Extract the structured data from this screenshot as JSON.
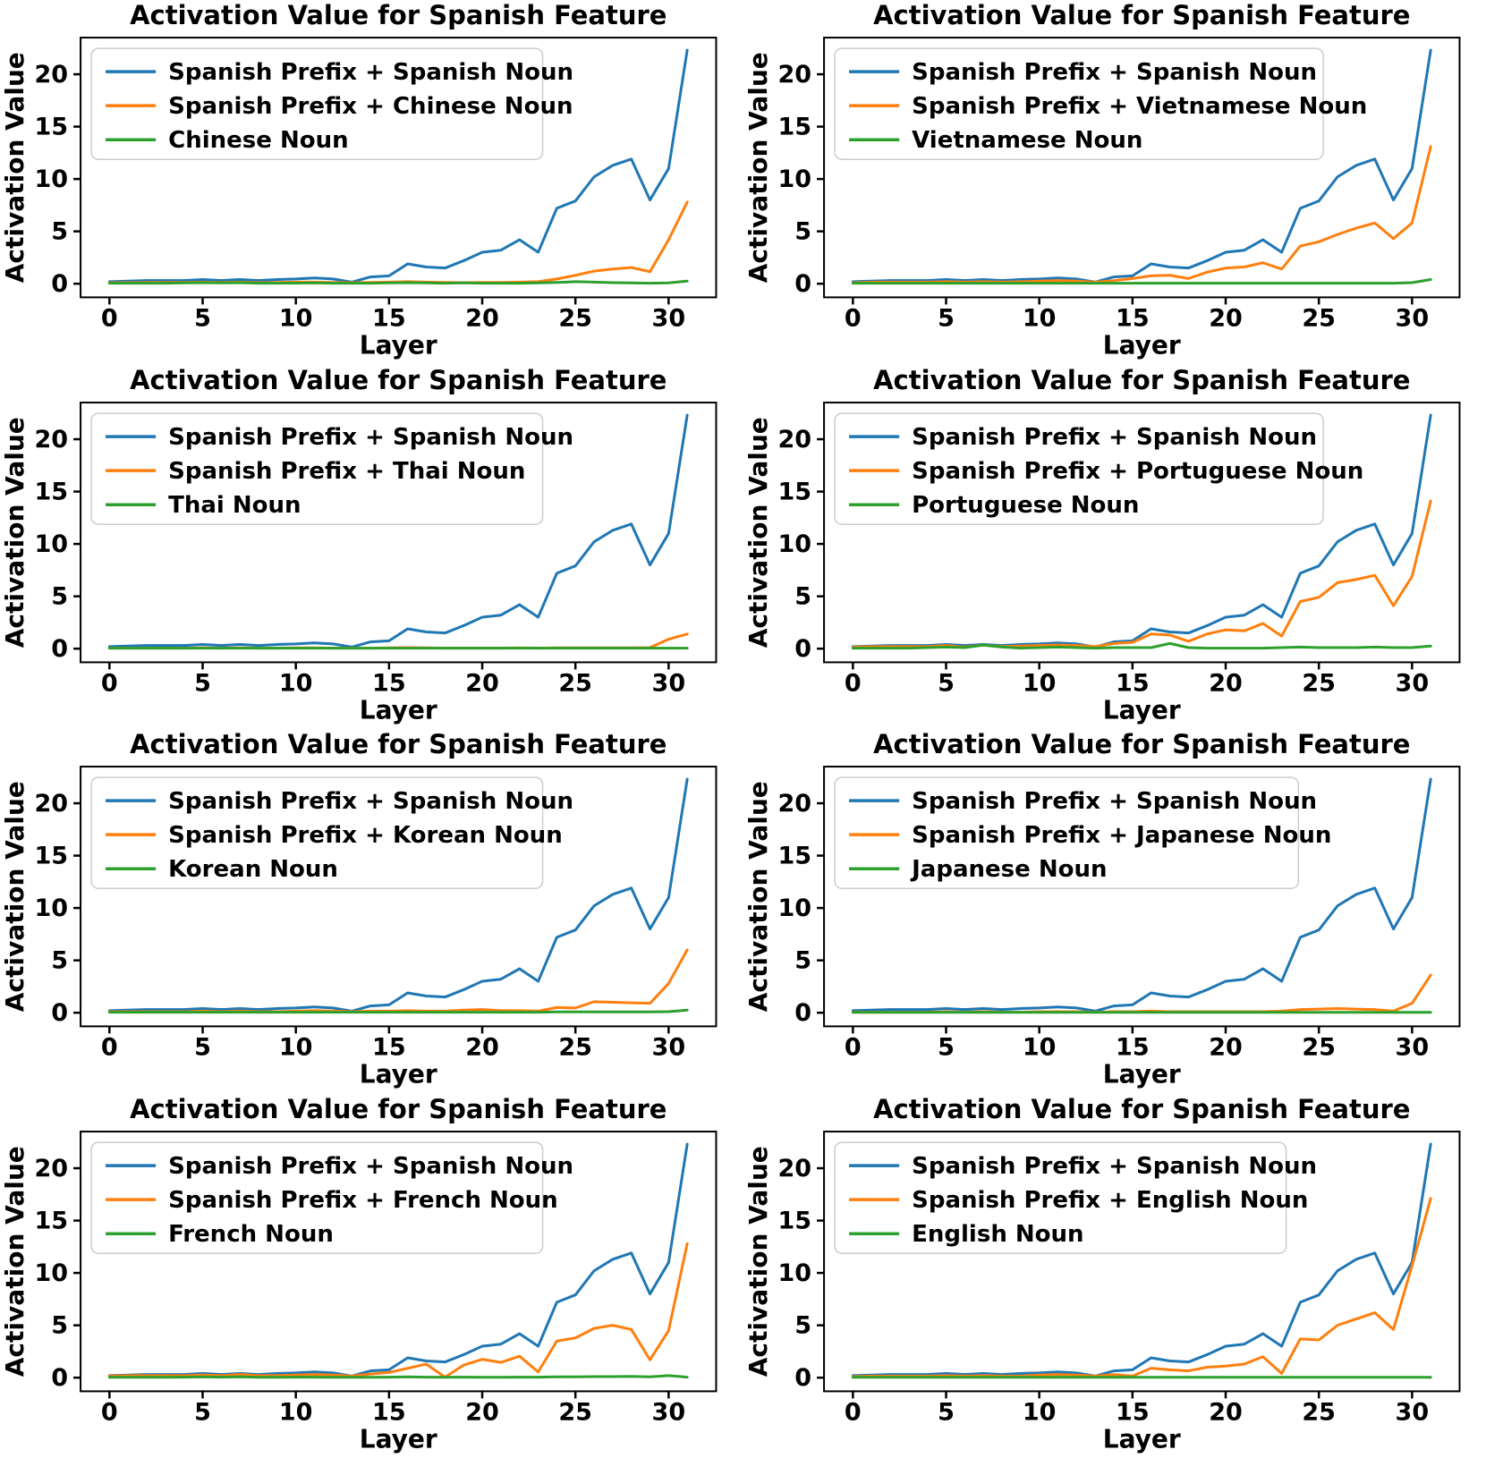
{
  "figure": {
    "background": "#ffffff",
    "text_color": "#000000",
    "font_weight": "bold",
    "layers": [
      0,
      1,
      2,
      3,
      4,
      5,
      6,
      7,
      8,
      9,
      10,
      11,
      12,
      13,
      14,
      15,
      16,
      17,
      18,
      19,
      20,
      21,
      22,
      23,
      24,
      25,
      26,
      27,
      28,
      29,
      30,
      31
    ],
    "x_ticks": [
      0,
      5,
      10,
      15,
      20,
      25,
      30
    ],
    "y_ticks": [
      0,
      5,
      10,
      15,
      20
    ],
    "xlim": [
      -1.55,
      32.55
    ],
    "ylim": [
      -1.3,
      23.5
    ],
    "grid": false,
    "legend_position": "upper left",
    "colors": {
      "spanish_line": "#1f77b4",
      "mixed_line": "#ff7f0e",
      "noun_line": "#2ca02c",
      "legend_border": "#cccccc"
    }
  },
  "chart_data": [
    {
      "type": "line",
      "title": "Activation Value for Spanish Feature",
      "xlabel": "Layer",
      "ylabel": "Activation Value",
      "comparison_language": "Chinese",
      "series": [
        {
          "name": "Spanish Prefix + Spanish Noun",
          "color": "#1f77b4",
          "values": [
            0.2,
            0.25,
            0.3,
            0.3,
            0.3,
            0.4,
            0.3,
            0.4,
            0.3,
            0.4,
            0.45,
            0.55,
            0.45,
            0.15,
            0.65,
            0.75,
            1.9,
            1.6,
            1.5,
            2.2,
            3.0,
            3.2,
            4.2,
            3.0,
            7.2,
            7.9,
            10.2,
            11.3,
            11.9,
            8.0,
            11.0,
            22.3
          ]
        },
        {
          "name": "Spanish Prefix + Chinese Noun",
          "color": "#ff7f0e",
          "values": [
            0.1,
            0.1,
            0.12,
            0.12,
            0.12,
            0.15,
            0.12,
            0.15,
            0.1,
            0.12,
            0.15,
            0.15,
            0.12,
            0.1,
            0.12,
            0.15,
            0.2,
            0.15,
            0.12,
            0.1,
            0.12,
            0.12,
            0.15,
            0.2,
            0.45,
            0.8,
            1.2,
            1.4,
            1.55,
            1.15,
            4.2,
            7.8
          ]
        },
        {
          "name": "Chinese Noun",
          "color": "#2ca02c",
          "values": [
            0.05,
            0.05,
            0.05,
            0.05,
            0.08,
            0.1,
            0.08,
            0.1,
            0.05,
            0.05,
            0.06,
            0.08,
            0.05,
            0.05,
            0.05,
            0.08,
            0.1,
            0.08,
            0.05,
            0.08,
            0.05,
            0.05,
            0.05,
            0.08,
            0.12,
            0.2,
            0.15,
            0.1,
            0.08,
            0.05,
            0.08,
            0.25
          ]
        }
      ]
    },
    {
      "type": "line",
      "title": "Activation Value for Spanish Feature",
      "xlabel": "Layer",
      "ylabel": "Activation Value",
      "comparison_language": "Vietnamese",
      "series": [
        {
          "name": "Spanish Prefix + Spanish Noun",
          "color": "#1f77b4",
          "values": [
            0.2,
            0.25,
            0.3,
            0.3,
            0.3,
            0.4,
            0.3,
            0.4,
            0.3,
            0.4,
            0.45,
            0.55,
            0.45,
            0.15,
            0.65,
            0.75,
            1.9,
            1.6,
            1.5,
            2.2,
            3.0,
            3.2,
            4.2,
            3.0,
            7.2,
            7.9,
            10.2,
            11.3,
            11.9,
            8.0,
            11.0,
            22.3
          ]
        },
        {
          "name": "Spanish Prefix + Vietnamese Noun",
          "color": "#ff7f0e",
          "values": [
            0.1,
            0.15,
            0.15,
            0.15,
            0.15,
            0.2,
            0.15,
            0.2,
            0.15,
            0.2,
            0.25,
            0.3,
            0.25,
            0.15,
            0.3,
            0.5,
            0.75,
            0.8,
            0.5,
            1.1,
            1.5,
            1.6,
            2.0,
            1.4,
            3.6,
            4.0,
            4.7,
            5.3,
            5.8,
            4.3,
            5.8,
            13.1
          ]
        },
        {
          "name": "Vietnamese Noun",
          "color": "#2ca02c",
          "values": [
            0.05,
            0.05,
            0.05,
            0.05,
            0.05,
            0.05,
            0.05,
            0.05,
            0.05,
            0.05,
            0.05,
            0.05,
            0.05,
            0.05,
            0.05,
            0.05,
            0.05,
            0.05,
            0.05,
            0.05,
            0.05,
            0.05,
            0.05,
            0.05,
            0.05,
            0.05,
            0.05,
            0.05,
            0.05,
            0.05,
            0.1,
            0.4
          ]
        }
      ]
    },
    {
      "type": "line",
      "title": "Activation Value for Spanish Feature",
      "xlabel": "Layer",
      "ylabel": "Activation Value",
      "comparison_language": "Thai",
      "series": [
        {
          "name": "Spanish Prefix + Spanish Noun",
          "color": "#1f77b4",
          "values": [
            0.2,
            0.25,
            0.3,
            0.3,
            0.3,
            0.4,
            0.3,
            0.4,
            0.3,
            0.4,
            0.45,
            0.55,
            0.45,
            0.15,
            0.65,
            0.75,
            1.9,
            1.6,
            1.5,
            2.2,
            3.0,
            3.2,
            4.2,
            3.0,
            7.2,
            7.9,
            10.2,
            11.3,
            11.9,
            8.0,
            11.0,
            22.3
          ]
        },
        {
          "name": "Spanish Prefix + Thai Noun",
          "color": "#ff7f0e",
          "values": [
            0.05,
            0.05,
            0.05,
            0.05,
            0.05,
            0.08,
            0.05,
            0.08,
            0.05,
            0.05,
            0.08,
            0.08,
            0.05,
            0.05,
            0.05,
            0.08,
            0.1,
            0.08,
            0.05,
            0.05,
            0.05,
            0.05,
            0.08,
            0.05,
            0.08,
            0.08,
            0.08,
            0.08,
            0.08,
            0.1,
            0.9,
            1.4
          ]
        },
        {
          "name": "Thai Noun",
          "color": "#2ca02c",
          "values": [
            0.05,
            0.05,
            0.05,
            0.05,
            0.05,
            0.05,
            0.05,
            0.05,
            0.05,
            0.05,
            0.05,
            0.05,
            0.05,
            0.05,
            0.05,
            0.05,
            0.05,
            0.05,
            0.05,
            0.05,
            0.05,
            0.05,
            0.05,
            0.05,
            0.05,
            0.05,
            0.05,
            0.05,
            0.05,
            0.05,
            0.05,
            0.05
          ]
        }
      ]
    },
    {
      "type": "line",
      "title": "Activation Value for Spanish Feature",
      "xlabel": "Layer",
      "ylabel": "Activation Value",
      "comparison_language": "Portuguese",
      "series": [
        {
          "name": "Spanish Prefix + Spanish Noun",
          "color": "#1f77b4",
          "values": [
            0.2,
            0.25,
            0.3,
            0.3,
            0.3,
            0.4,
            0.3,
            0.4,
            0.3,
            0.4,
            0.45,
            0.55,
            0.45,
            0.15,
            0.65,
            0.75,
            1.9,
            1.6,
            1.5,
            2.2,
            3.0,
            3.2,
            4.2,
            3.0,
            7.2,
            7.9,
            10.2,
            11.3,
            11.9,
            8.0,
            11.0,
            22.3
          ]
        },
        {
          "name": "Spanish Prefix + Portuguese Noun",
          "color": "#ff7f0e",
          "values": [
            0.15,
            0.2,
            0.2,
            0.2,
            0.2,
            0.3,
            0.15,
            0.35,
            0.2,
            0.25,
            0.3,
            0.35,
            0.3,
            0.2,
            0.5,
            0.6,
            1.4,
            1.3,
            0.7,
            1.4,
            1.8,
            1.7,
            2.4,
            1.2,
            4.5,
            4.9,
            6.3,
            6.6,
            7.0,
            4.1,
            6.9,
            14.1
          ]
        },
        {
          "name": "Portuguese Noun",
          "color": "#2ca02c",
          "values": [
            0.05,
            0.05,
            0.05,
            0.05,
            0.1,
            0.15,
            0.1,
            0.35,
            0.15,
            0.05,
            0.1,
            0.15,
            0.1,
            0.05,
            0.1,
            0.1,
            0.1,
            0.5,
            0.1,
            0.05,
            0.05,
            0.05,
            0.05,
            0.1,
            0.15,
            0.1,
            0.1,
            0.1,
            0.15,
            0.1,
            0.1,
            0.25
          ]
        }
      ]
    },
    {
      "type": "line",
      "title": "Activation Value for Spanish Feature",
      "xlabel": "Layer",
      "ylabel": "Activation Value",
      "comparison_language": "Korean",
      "series": [
        {
          "name": "Spanish Prefix + Spanish Noun",
          "color": "#1f77b4",
          "values": [
            0.2,
            0.25,
            0.3,
            0.3,
            0.3,
            0.4,
            0.3,
            0.4,
            0.3,
            0.4,
            0.45,
            0.55,
            0.45,
            0.15,
            0.65,
            0.75,
            1.9,
            1.6,
            1.5,
            2.2,
            3.0,
            3.2,
            4.2,
            3.0,
            7.2,
            7.9,
            10.2,
            11.3,
            11.9,
            8.0,
            11.0,
            22.3
          ]
        },
        {
          "name": "Spanish Prefix + Korean Noun",
          "color": "#ff7f0e",
          "values": [
            0.1,
            0.1,
            0.1,
            0.1,
            0.1,
            0.15,
            0.1,
            0.15,
            0.1,
            0.1,
            0.15,
            0.2,
            0.15,
            0.1,
            0.15,
            0.15,
            0.2,
            0.15,
            0.15,
            0.25,
            0.3,
            0.2,
            0.2,
            0.15,
            0.5,
            0.45,
            1.05,
            1.0,
            0.95,
            0.9,
            2.8,
            6.0
          ]
        },
        {
          "name": "Korean Noun",
          "color": "#2ca02c",
          "values": [
            0.05,
            0.05,
            0.05,
            0.05,
            0.05,
            0.05,
            0.05,
            0.05,
            0.05,
            0.05,
            0.05,
            0.05,
            0.05,
            0.05,
            0.05,
            0.05,
            0.05,
            0.05,
            0.05,
            0.05,
            0.05,
            0.05,
            0.05,
            0.05,
            0.08,
            0.08,
            0.08,
            0.08,
            0.08,
            0.08,
            0.1,
            0.25
          ]
        }
      ]
    },
    {
      "type": "line",
      "title": "Activation Value for Spanish Feature",
      "xlabel": "Layer",
      "ylabel": "Activation Value",
      "comparison_language": "Japanese",
      "series": [
        {
          "name": "Spanish Prefix + Spanish Noun",
          "color": "#1f77b4",
          "values": [
            0.2,
            0.25,
            0.3,
            0.3,
            0.3,
            0.4,
            0.3,
            0.4,
            0.3,
            0.4,
            0.45,
            0.55,
            0.45,
            0.15,
            0.65,
            0.75,
            1.9,
            1.6,
            1.5,
            2.2,
            3.0,
            3.2,
            4.2,
            3.0,
            7.2,
            7.9,
            10.2,
            11.3,
            11.9,
            8.0,
            11.0,
            22.3
          ]
        },
        {
          "name": "Spanish Prefix + Japanese Noun",
          "color": "#ff7f0e",
          "values": [
            0.05,
            0.05,
            0.05,
            0.05,
            0.05,
            0.1,
            0.05,
            0.1,
            0.05,
            0.05,
            0.1,
            0.1,
            0.1,
            0.05,
            0.1,
            0.1,
            0.15,
            0.1,
            0.1,
            0.1,
            0.1,
            0.1,
            0.1,
            0.15,
            0.3,
            0.35,
            0.4,
            0.35,
            0.3,
            0.15,
            0.9,
            3.6
          ]
        },
        {
          "name": "Japanese Noun",
          "color": "#2ca02c",
          "values": [
            0.03,
            0.03,
            0.03,
            0.03,
            0.03,
            0.03,
            0.03,
            0.03,
            0.03,
            0.03,
            0.03,
            0.03,
            0.03,
            0.03,
            0.03,
            0.03,
            0.03,
            0.03,
            0.03,
            0.03,
            0.03,
            0.03,
            0.03,
            0.03,
            0.03,
            0.03,
            0.03,
            0.03,
            0.03,
            0.03,
            0.03,
            0.03
          ]
        }
      ]
    },
    {
      "type": "line",
      "title": "Activation Value for Spanish Feature",
      "xlabel": "Layer",
      "ylabel": "Activation Value",
      "comparison_language": "French",
      "series": [
        {
          "name": "Spanish Prefix + Spanish Noun",
          "color": "#1f77b4",
          "values": [
            0.2,
            0.25,
            0.3,
            0.3,
            0.3,
            0.4,
            0.3,
            0.4,
            0.3,
            0.4,
            0.45,
            0.55,
            0.45,
            0.15,
            0.65,
            0.75,
            1.9,
            1.6,
            1.5,
            2.2,
            3.0,
            3.2,
            4.2,
            3.0,
            7.2,
            7.9,
            10.2,
            11.3,
            11.9,
            8.0,
            11.0,
            22.3
          ]
        },
        {
          "name": "Spanish Prefix + French Noun",
          "color": "#ff7f0e",
          "values": [
            0.15,
            0.2,
            0.2,
            0.2,
            0.2,
            0.25,
            0.2,
            0.3,
            0.2,
            0.2,
            0.25,
            0.3,
            0.25,
            0.15,
            0.35,
            0.5,
            0.9,
            1.3,
            0.05,
            1.2,
            1.75,
            1.45,
            2.05,
            0.55,
            3.5,
            3.8,
            4.7,
            5.0,
            4.6,
            1.7,
            4.5,
            12.8
          ]
        },
        {
          "name": "French Noun",
          "color": "#2ca02c",
          "values": [
            0.03,
            0.03,
            0.03,
            0.03,
            0.05,
            0.08,
            0.05,
            0.08,
            0.03,
            0.03,
            0.05,
            0.05,
            0.03,
            0.03,
            0.03,
            0.05,
            0.08,
            0.05,
            0.03,
            0.05,
            0.03,
            0.03,
            0.05,
            0.05,
            0.08,
            0.08,
            0.1,
            0.1,
            0.12,
            0.08,
            0.2,
            0.05
          ]
        }
      ]
    },
    {
      "type": "line",
      "title": "Activation Value for Spanish Feature",
      "xlabel": "Layer",
      "ylabel": "Activation Value",
      "comparison_language": "English",
      "series": [
        {
          "name": "Spanish Prefix + Spanish Noun",
          "color": "#1f77b4",
          "values": [
            0.2,
            0.25,
            0.3,
            0.3,
            0.3,
            0.4,
            0.3,
            0.4,
            0.3,
            0.4,
            0.45,
            0.55,
            0.45,
            0.15,
            0.65,
            0.75,
            1.9,
            1.6,
            1.5,
            2.2,
            3.0,
            3.2,
            4.2,
            3.0,
            7.2,
            7.9,
            10.2,
            11.3,
            11.9,
            8.0,
            11.0,
            22.3
          ]
        },
        {
          "name": "Spanish Prefix + English Noun",
          "color": "#ff7f0e",
          "values": [
            0.1,
            0.15,
            0.15,
            0.15,
            0.15,
            0.2,
            0.15,
            0.2,
            0.15,
            0.15,
            0.25,
            0.3,
            0.25,
            0.15,
            0.3,
            0.15,
            0.9,
            0.75,
            0.65,
            1.0,
            1.1,
            1.3,
            2.0,
            0.4,
            3.7,
            3.6,
            5.0,
            5.6,
            6.2,
            4.6,
            10.7,
            17.1
          ]
        },
        {
          "name": "English Noun",
          "color": "#2ca02c",
          "values": [
            0.03,
            0.03,
            0.03,
            0.03,
            0.03,
            0.03,
            0.03,
            0.03,
            0.03,
            0.03,
            0.03,
            0.03,
            0.03,
            0.03,
            0.03,
            0.03,
            0.03,
            0.03,
            0.03,
            0.03,
            0.03,
            0.03,
            0.03,
            0.03,
            0.03,
            0.03,
            0.03,
            0.03,
            0.03,
            0.03,
            0.03,
            0.03
          ]
        }
      ]
    }
  ]
}
